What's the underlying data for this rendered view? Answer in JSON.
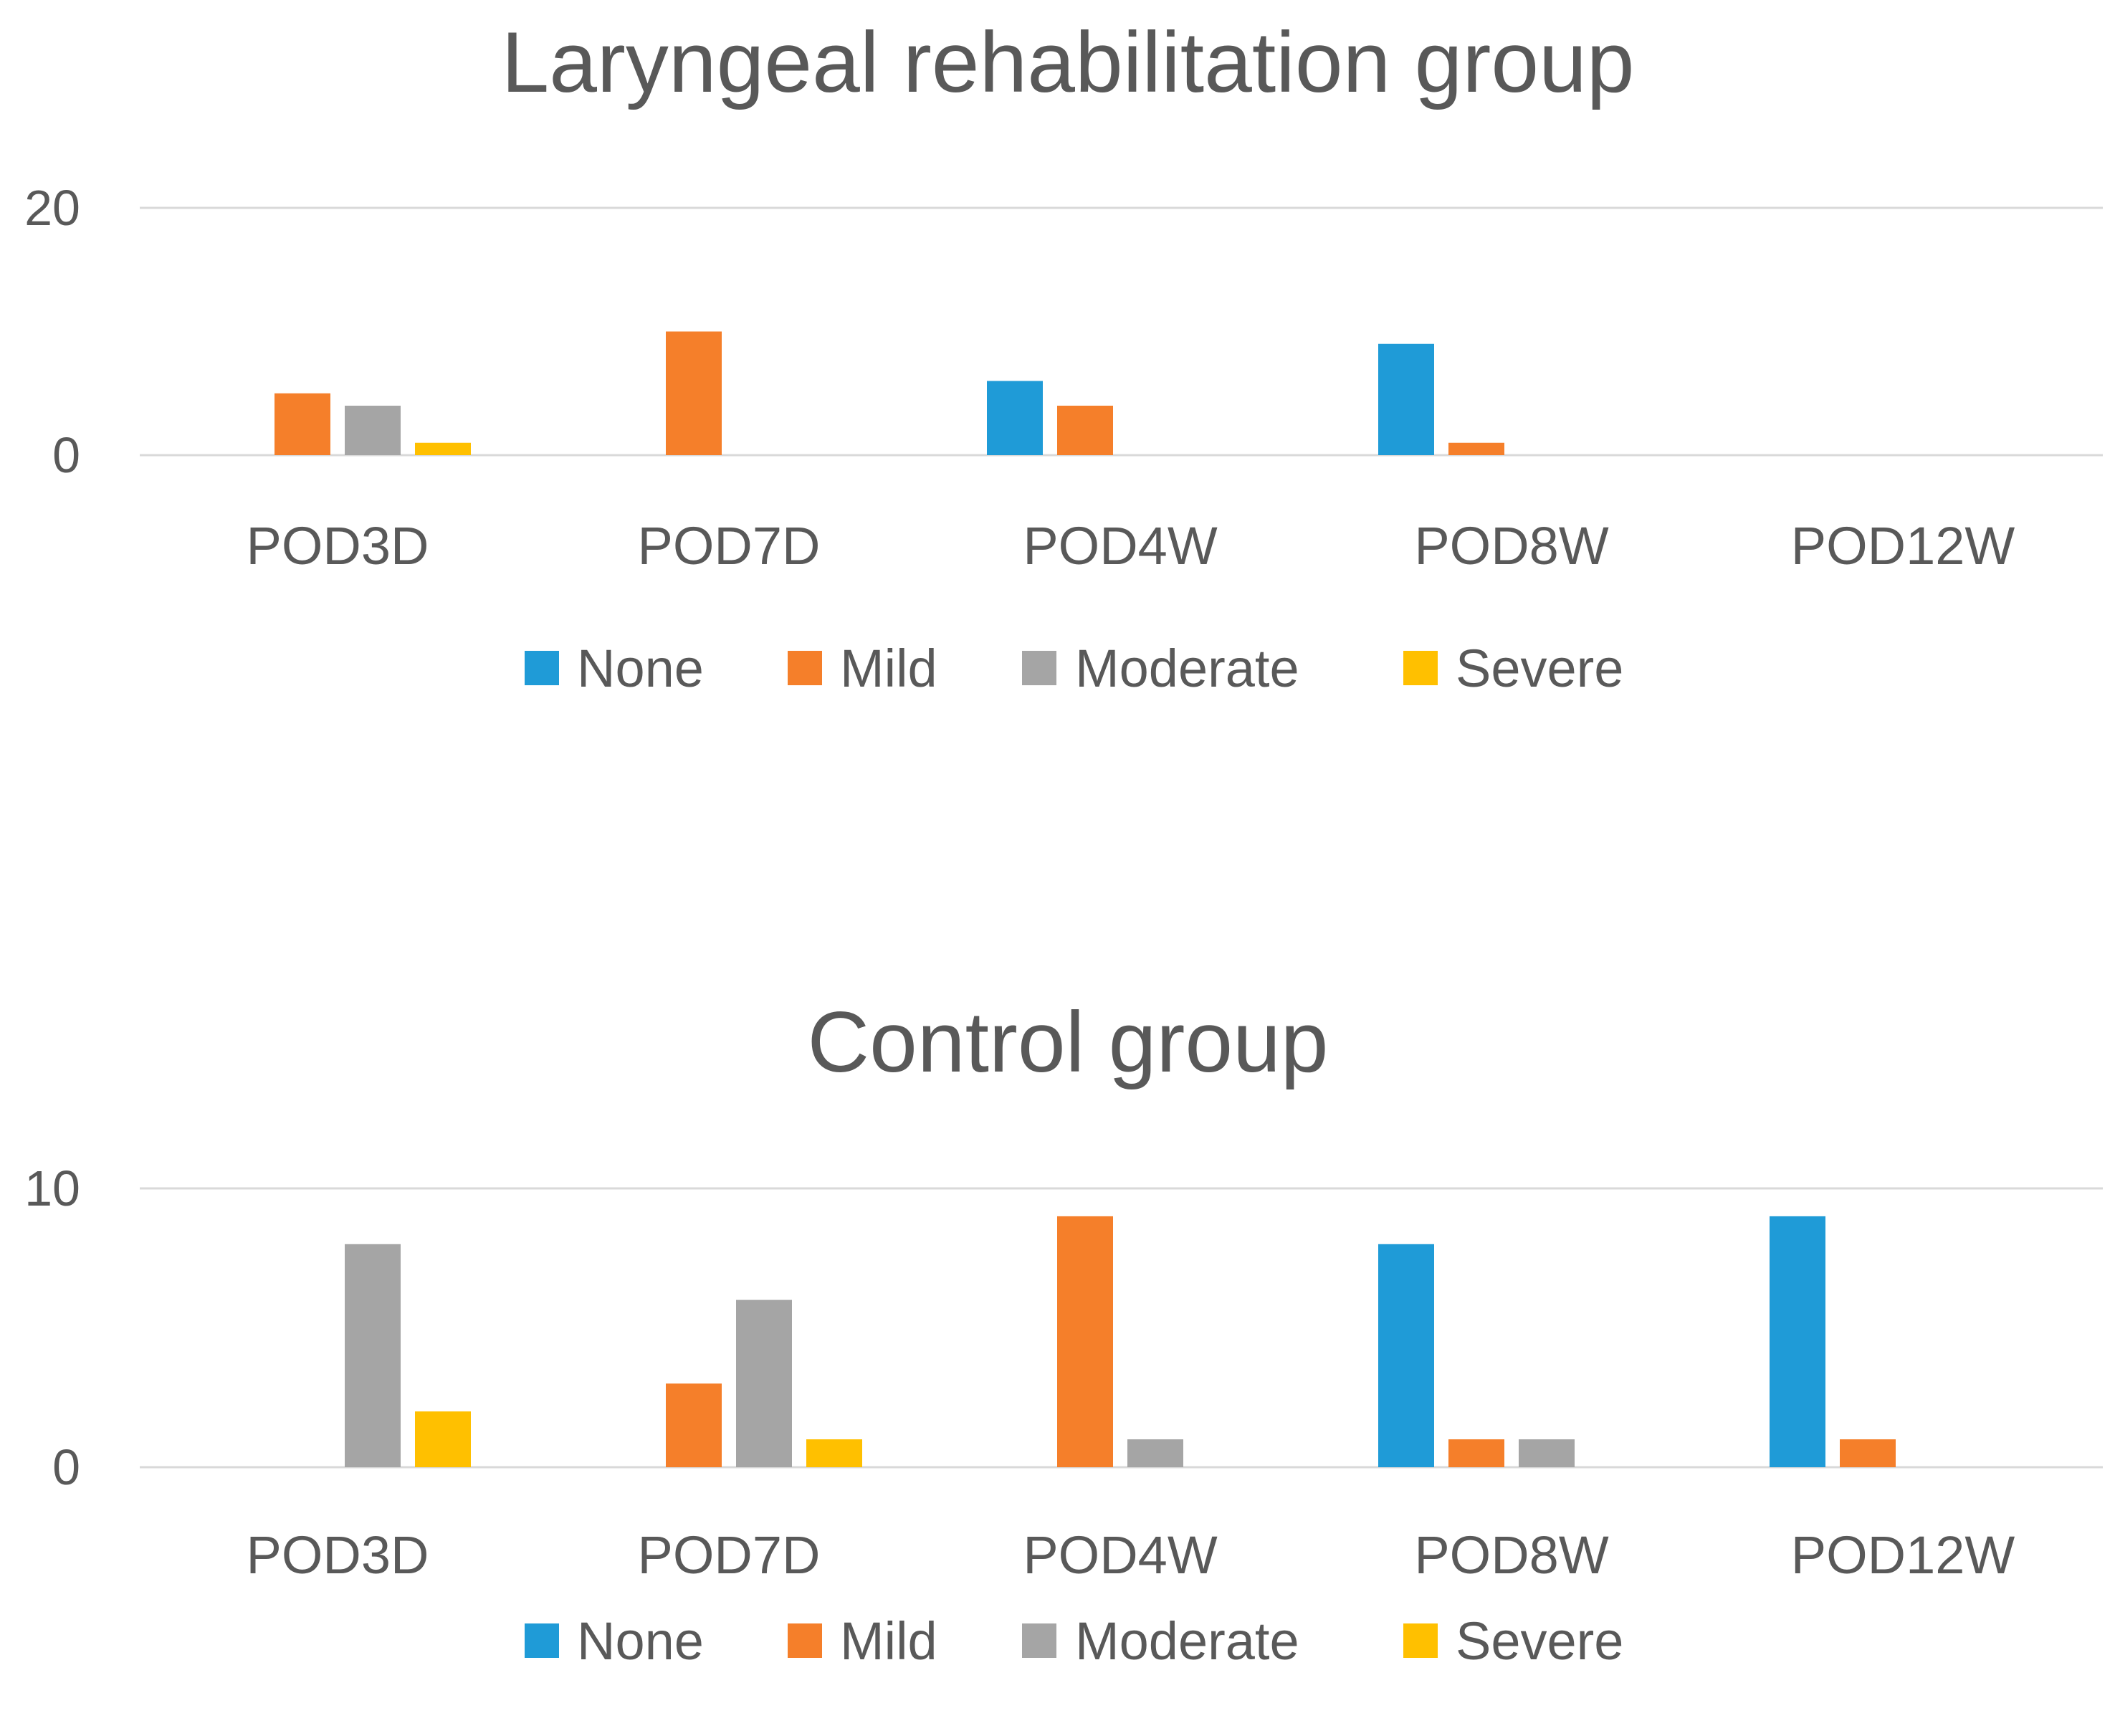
{
  "chart_data": [
    {
      "type": "bar",
      "title": "Laryngeal rehabilitation group",
      "categories": [
        "POD3D",
        "POD7D",
        "POD4W",
        "POD8W",
        "POD12W"
      ],
      "series": [
        {
          "name": "None",
          "color": "#1f9bd7",
          "values": [
            0,
            0,
            6,
            9,
            0
          ]
        },
        {
          "name": "Mild",
          "color": "#f57f2a",
          "values": [
            5,
            10,
            4,
            1,
            0
          ]
        },
        {
          "name": "Moderate",
          "color": "#a5a5a5",
          "values": [
            4,
            0,
            0,
            0,
            0
          ]
        },
        {
          "name": "Severe",
          "color": "#ffc000",
          "values": [
            1,
            0,
            0,
            0,
            0
          ]
        }
      ],
      "ylim": [
        0,
        20
      ],
      "yticks": [
        0,
        20
      ],
      "ytick_labels": [
        "0",
        "20"
      ],
      "xlabel": "",
      "ylabel": "",
      "grid": true,
      "legend": "bottom"
    },
    {
      "type": "bar",
      "title": "Control group",
      "categories": [
        "POD3D",
        "POD7D",
        "POD4W",
        "POD8W",
        "POD12W"
      ],
      "series": [
        {
          "name": "None",
          "color": "#1f9bd7",
          "values": [
            0,
            0,
            0,
            8,
            9
          ]
        },
        {
          "name": "Mild",
          "color": "#f57f2a",
          "values": [
            0,
            3,
            9,
            1,
            1
          ]
        },
        {
          "name": "Moderate",
          "color": "#a5a5a5",
          "values": [
            8,
            6,
            1,
            1,
            0
          ]
        },
        {
          "name": "Severe",
          "color": "#ffc000",
          "values": [
            2,
            1,
            0,
            0,
            0
          ]
        }
      ],
      "ylim": [
        0,
        10
      ],
      "yticks": [
        0,
        10
      ],
      "ytick_labels": [
        "0",
        "10"
      ],
      "xlabel": "",
      "ylabel": "",
      "grid": true,
      "legend": "bottom"
    }
  ]
}
